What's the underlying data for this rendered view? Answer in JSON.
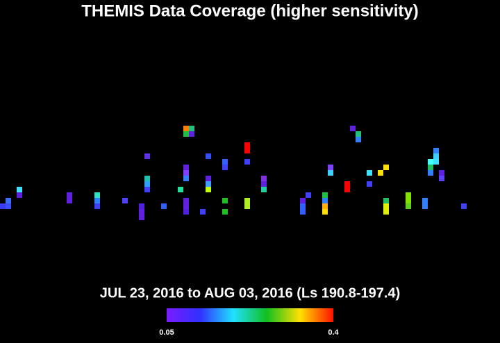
{
  "header": {
    "title": "THEMIS Data Coverage (higher sensitivity)",
    "subtitle": "JUL 23, 2016 to AUG 03, 2016 (Ls 190.8-197.4)"
  },
  "colorbar": {
    "range": [
      0.05,
      0.4
    ],
    "ticks": [
      0.05,
      0.4
    ]
  }
}
